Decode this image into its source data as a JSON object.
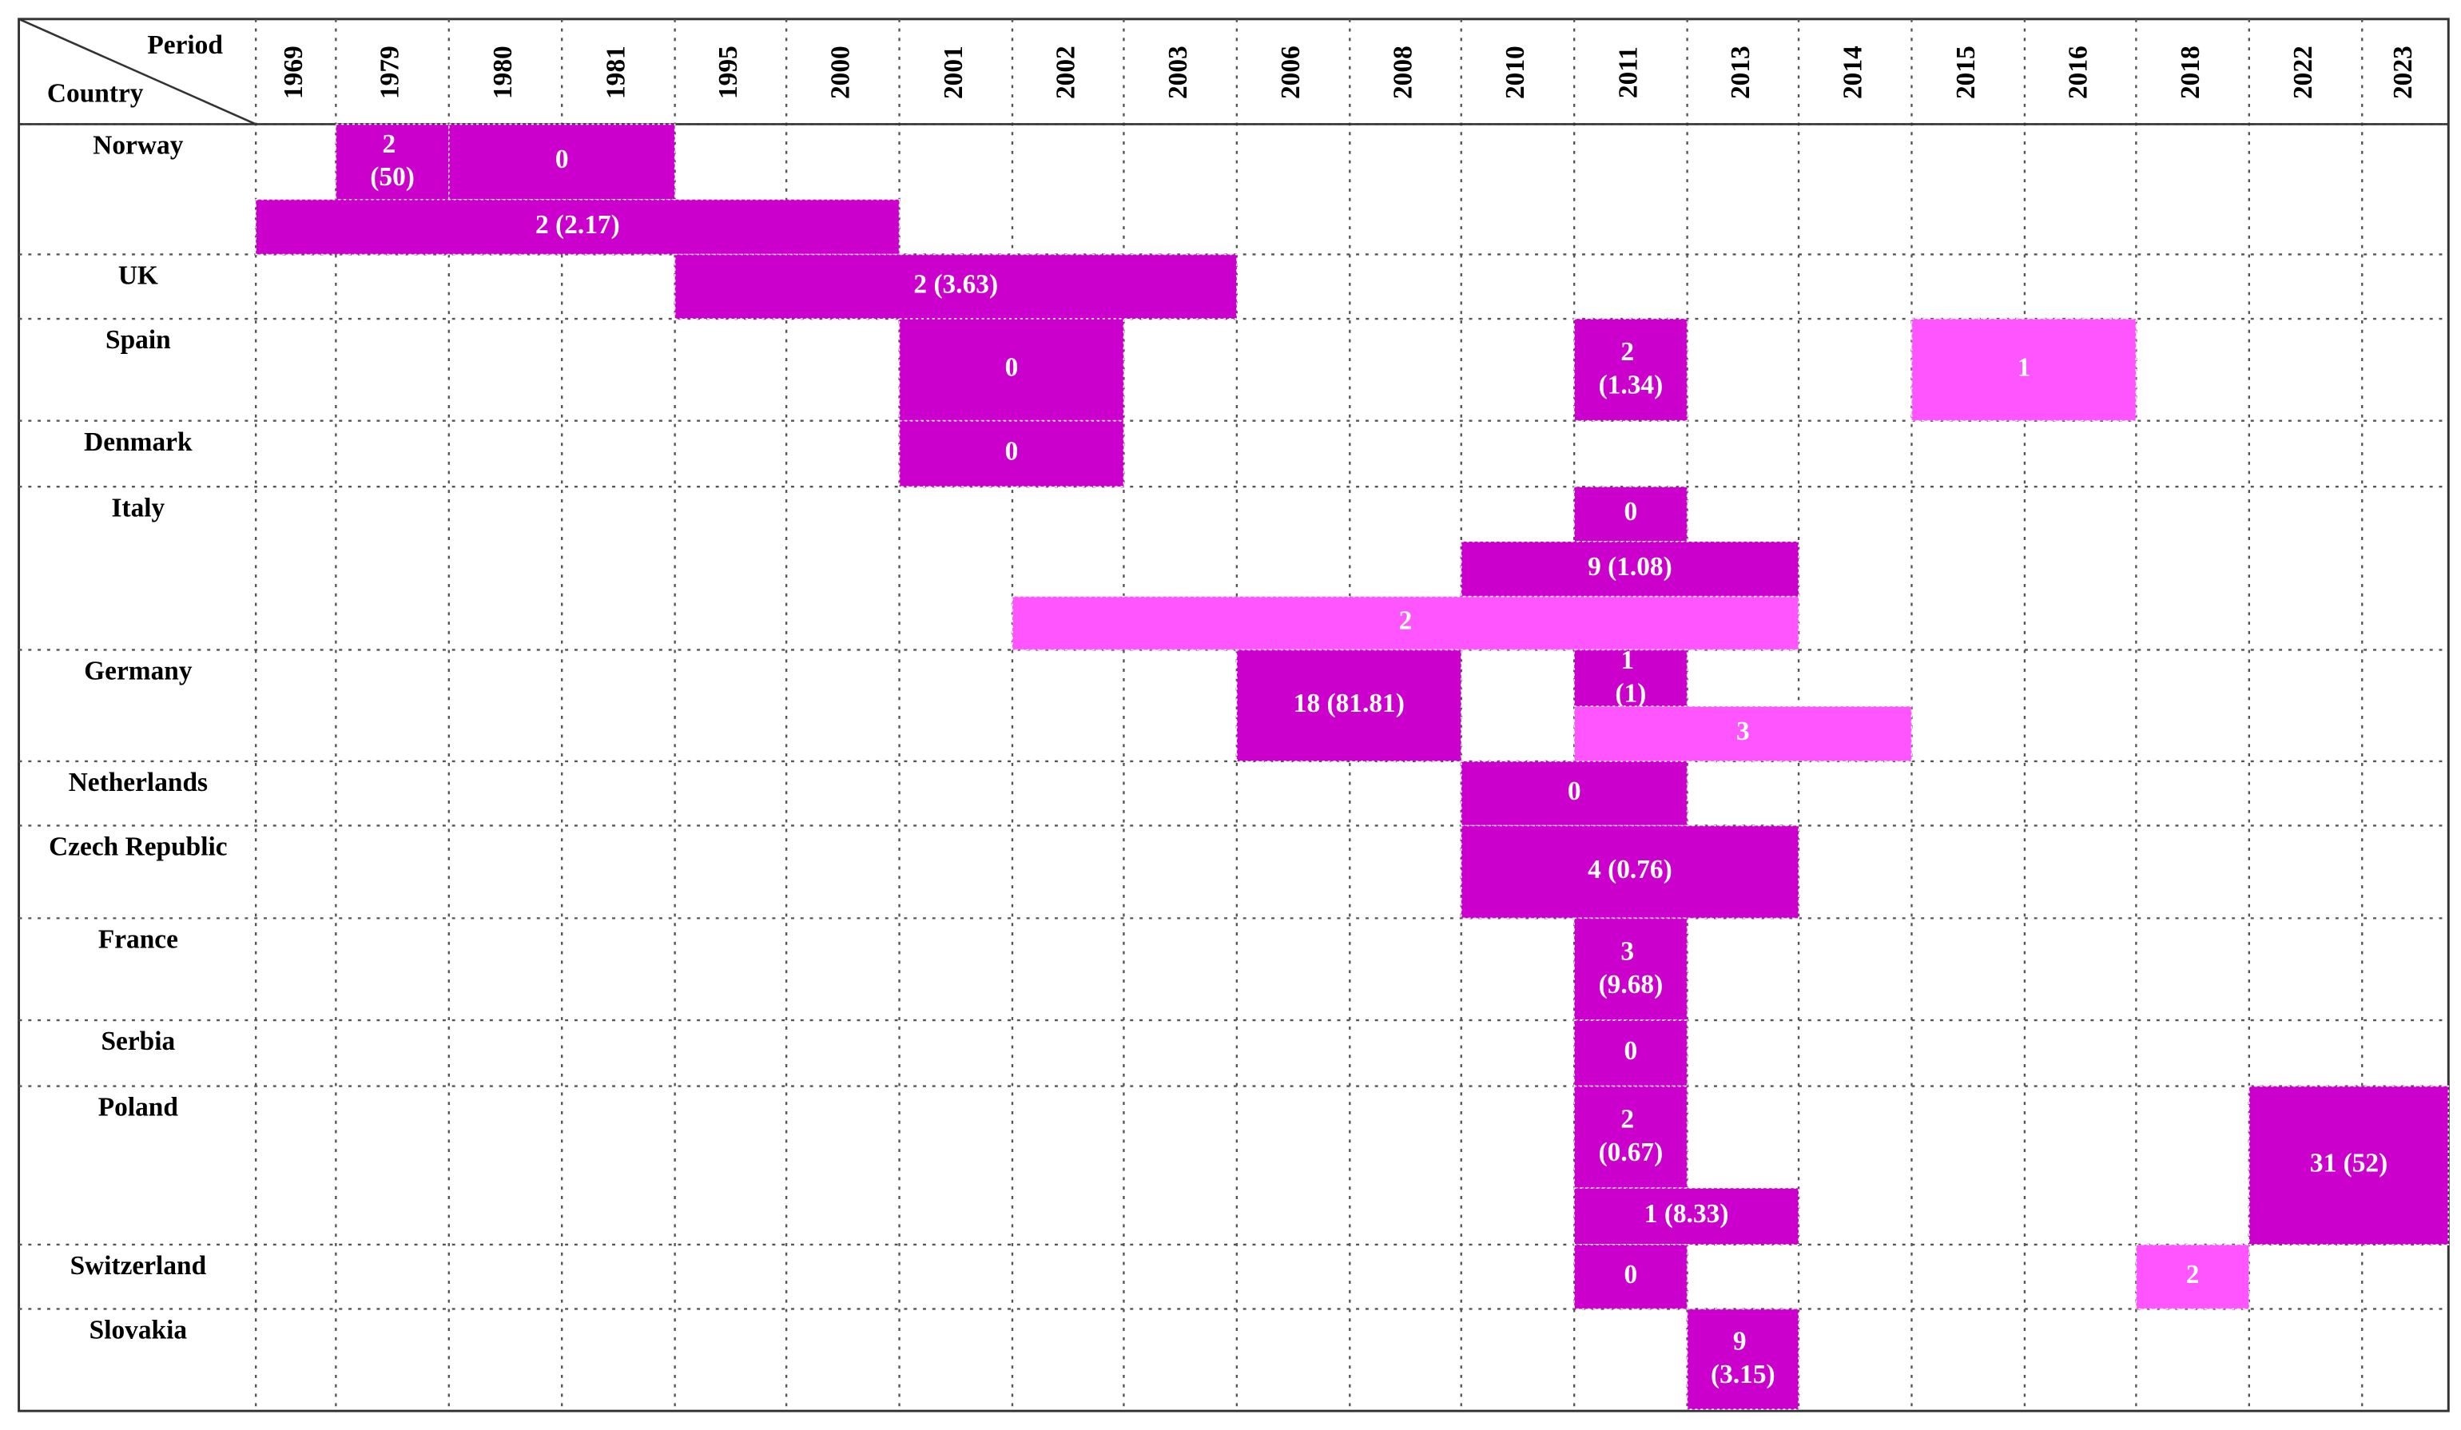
{
  "header": {
    "period": "Period",
    "country": "Country",
    "years": [
      "1969",
      "1979",
      "1980",
      "1981",
      "1995",
      "2000",
      "2001",
      "2002",
      "2003",
      "2006",
      "2008",
      "2010",
      "2011",
      "2013",
      "2014",
      "2015",
      "2016",
      "2018",
      "2022",
      "2023"
    ]
  },
  "colors": {
    "dark": "#cc00cc",
    "light": "#ff55ff"
  },
  "rows": [
    {
      "country": "Norway",
      "bars": [
        {
          "from": "1979",
          "to": "1979",
          "label": "2 (50)",
          "color": "dark"
        },
        {
          "from": "1980",
          "to": "1981",
          "label": "0",
          "color": "dark"
        },
        {
          "from": "1969",
          "to": "2000",
          "label": "2 (2.17)",
          "color": "dark"
        }
      ]
    },
    {
      "country": "UK",
      "bars": [
        {
          "from": "1995",
          "to": "2003",
          "label": "2 (3.63)",
          "color": "dark"
        }
      ]
    },
    {
      "country": "Spain",
      "bars": [
        {
          "from": "2001",
          "to": "2002",
          "label": "0",
          "color": "dark"
        },
        {
          "from": "2011",
          "to": "2011",
          "label": "2 (1.34)",
          "color": "dark"
        },
        {
          "from": "2015",
          "to": "2016",
          "label": "1",
          "color": "light"
        }
      ]
    },
    {
      "country": "Denmark",
      "bars": [
        {
          "from": "2001",
          "to": "2002",
          "label": "0",
          "color": "dark"
        }
      ]
    },
    {
      "country": "Italy",
      "bars": [
        {
          "from": "2011",
          "to": "2011",
          "label": "0",
          "color": "dark"
        },
        {
          "from": "2010",
          "to": "2013",
          "label": "9 (1.08)",
          "color": "dark"
        },
        {
          "from": "2002",
          "to": "2013",
          "label": "2",
          "color": "light"
        }
      ]
    },
    {
      "country": "Germany",
      "bars": [
        {
          "from": "2006",
          "to": "2008",
          "label": "18 (81.81)",
          "color": "dark"
        },
        {
          "from": "2011",
          "to": "2011",
          "label": "1 (1)",
          "color": "dark"
        },
        {
          "from": "2011",
          "to": "2014",
          "label": "3",
          "color": "light"
        }
      ]
    },
    {
      "country": "Netherlands",
      "bars": [
        {
          "from": "2010",
          "to": "2011",
          "label": "0",
          "color": "dark"
        }
      ]
    },
    {
      "country": "Czech Republic",
      "bars": [
        {
          "from": "2010",
          "to": "2013",
          "label": "4 (0.76)",
          "color": "dark"
        }
      ]
    },
    {
      "country": "France",
      "bars": [
        {
          "from": "2011",
          "to": "2011",
          "label": "3 (9.68)",
          "color": "dark"
        }
      ]
    },
    {
      "country": "Serbia",
      "bars": [
        {
          "from": "2011",
          "to": "2011",
          "label": "0",
          "color": "dark"
        }
      ]
    },
    {
      "country": "Poland",
      "bars": [
        {
          "from": "2011",
          "to": "2011",
          "label": "2 (0.67)",
          "color": "dark"
        },
        {
          "from": "2011",
          "to": "2013",
          "label": "1 (8.33)",
          "color": "dark"
        },
        {
          "from": "2022",
          "to": "2023",
          "label": "31 (52)",
          "color": "dark"
        }
      ]
    },
    {
      "country": "Switzerland",
      "bars": [
        {
          "from": "2011",
          "to": "2011",
          "label": "0",
          "color": "dark"
        },
        {
          "from": "2018",
          "to": "2018",
          "label": "2",
          "color": "light"
        }
      ]
    },
    {
      "country": "Slovakia",
      "bars": [
        {
          "from": "2013",
          "to": "2013",
          "label": "9 (3.15)",
          "color": "dark"
        }
      ]
    }
  ]
}
